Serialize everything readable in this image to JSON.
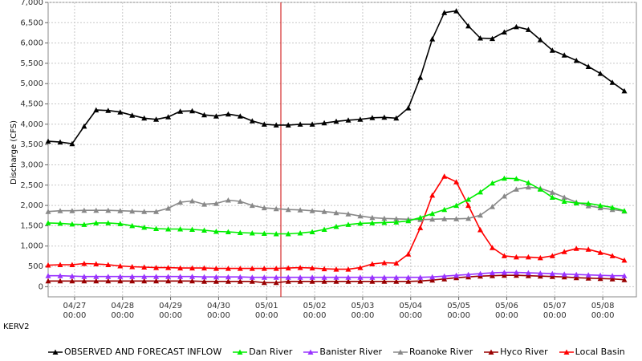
{
  "station_label": "KERV2",
  "chart_data": {
    "type": "line",
    "ylabel": "Discharge (CFS)",
    "xlabel": "",
    "title": "",
    "ylim": [
      -250,
      7000
    ],
    "xlim": [
      -0.55,
      11.7
    ],
    "y_ticks": [
      0,
      500,
      1000,
      1500,
      2000,
      2500,
      3000,
      3500,
      4000,
      4500,
      5000,
      5500,
      6000,
      6500,
      7000
    ],
    "y_tick_labels": [
      "0",
      "500",
      "1,000",
      "1,500",
      "2,000",
      "2,500",
      "3,000",
      "3,500",
      "4,000",
      "4,500",
      "5,000",
      "5,500",
      "6,000",
      "6,500",
      "7,000"
    ],
    "x_ticks": [
      0,
      1,
      2,
      3,
      4,
      5,
      6,
      7,
      8,
      9,
      10,
      11
    ],
    "x_tick_labels": [
      [
        "04/27",
        "00:00"
      ],
      [
        "04/28",
        "00:00"
      ],
      [
        "04/29",
        "00:00"
      ],
      [
        "04/30",
        "00:00"
      ],
      [
        "05/01",
        "00:00"
      ],
      [
        "05/02",
        "00:00"
      ],
      [
        "05/03",
        "00:00"
      ],
      [
        "05/04",
        "00:00"
      ],
      [
        "05/05",
        "00:00"
      ],
      [
        "05/06",
        "00:00"
      ],
      [
        "05/07",
        "00:00"
      ],
      [
        "05/08",
        "00:00"
      ]
    ],
    "grid": true,
    "legend_position": "bottom",
    "x_unit": "days since 04/27 00:00",
    "series": [
      {
        "name": "OBSERVED AND FORECAST INFLOW",
        "color": "#000000",
        "values": [
          3580,
          3560,
          3520,
          3950,
          4350,
          4340,
          4300,
          4220,
          4150,
          4120,
          4180,
          4320,
          4330,
          4230,
          4200,
          4250,
          4200,
          4080,
          4000,
          3980,
          3980,
          4000,
          4000,
          4030,
          4070,
          4100,
          4120,
          4160,
          4170,
          4150,
          4400,
          5150,
          6100,
          6750,
          6790,
          6420,
          6120,
          6110,
          6270,
          6400,
          6330,
          6080,
          5820,
          5700,
          5570,
          5420,
          5250,
          5030,
          4820
        ]
      },
      {
        "name": "Dan River",
        "color": "#00ee00",
        "values": [
          1570,
          1560,
          1540,
          1530,
          1570,
          1570,
          1550,
          1500,
          1460,
          1430,
          1420,
          1420,
          1410,
          1390,
          1360,
          1350,
          1330,
          1320,
          1310,
          1300,
          1300,
          1320,
          1350,
          1410,
          1480,
          1530,
          1560,
          1570,
          1580,
          1590,
          1620,
          1700,
          1800,
          1900,
          2000,
          2150,
          2330,
          2550,
          2670,
          2660,
          2560,
          2400,
          2200,
          2100,
          2060,
          2050,
          2000,
          1950,
          1870
        ]
      },
      {
        "name": "Banister River",
        "color": "#9933ff",
        "values": [
          270,
          270,
          260,
          250,
          250,
          250,
          250,
          250,
          250,
          250,
          250,
          250,
          250,
          240,
          240,
          240,
          240,
          230,
          230,
          230,
          230,
          230,
          230,
          230,
          230,
          230,
          230,
          230,
          230,
          230,
          230,
          230,
          240,
          260,
          280,
          300,
          320,
          340,
          350,
          350,
          340,
          330,
          320,
          310,
          300,
          290,
          280,
          270,
          270
        ]
      },
      {
        "name": "Roanoke River",
        "color": "#888888",
        "values": [
          1850,
          1870,
          1870,
          1880,
          1880,
          1880,
          1870,
          1860,
          1850,
          1850,
          1930,
          2080,
          2110,
          2030,
          2050,
          2130,
          2100,
          2000,
          1940,
          1920,
          1900,
          1890,
          1870,
          1850,
          1820,
          1790,
          1740,
          1700,
          1680,
          1670,
          1660,
          1650,
          1660,
          1670,
          1670,
          1680,
          1760,
          1970,
          2230,
          2400,
          2450,
          2420,
          2320,
          2200,
          2080,
          1990,
          1940,
          1900,
          1860
        ]
      },
      {
        "name": "Hyco River",
        "color": "#990000",
        "values": [
          140,
          140,
          140,
          140,
          140,
          140,
          140,
          140,
          140,
          140,
          140,
          140,
          140,
          130,
          130,
          130,
          130,
          130,
          100,
          100,
          130,
          130,
          130,
          130,
          130,
          130,
          130,
          130,
          130,
          130,
          130,
          140,
          160,
          190,
          220,
          240,
          260,
          270,
          280,
          280,
          270,
          260,
          250,
          240,
          220,
          210,
          200,
          190,
          170
        ]
      },
      {
        "name": "Local Basin",
        "color": "#ff0000",
        "values": [
          530,
          540,
          540,
          570,
          560,
          540,
          510,
          490,
          480,
          470,
          470,
          460,
          460,
          460,
          450,
          450,
          450,
          450,
          450,
          450,
          460,
          470,
          460,
          440,
          430,
          430,
          470,
          560,
          590,
          580,
          800,
          1450,
          2250,
          2720,
          2580,
          2000,
          1400,
          960,
          760,
          730,
          730,
          710,
          760,
          860,
          940,
          920,
          840,
          760,
          650
        ]
      }
    ]
  }
}
